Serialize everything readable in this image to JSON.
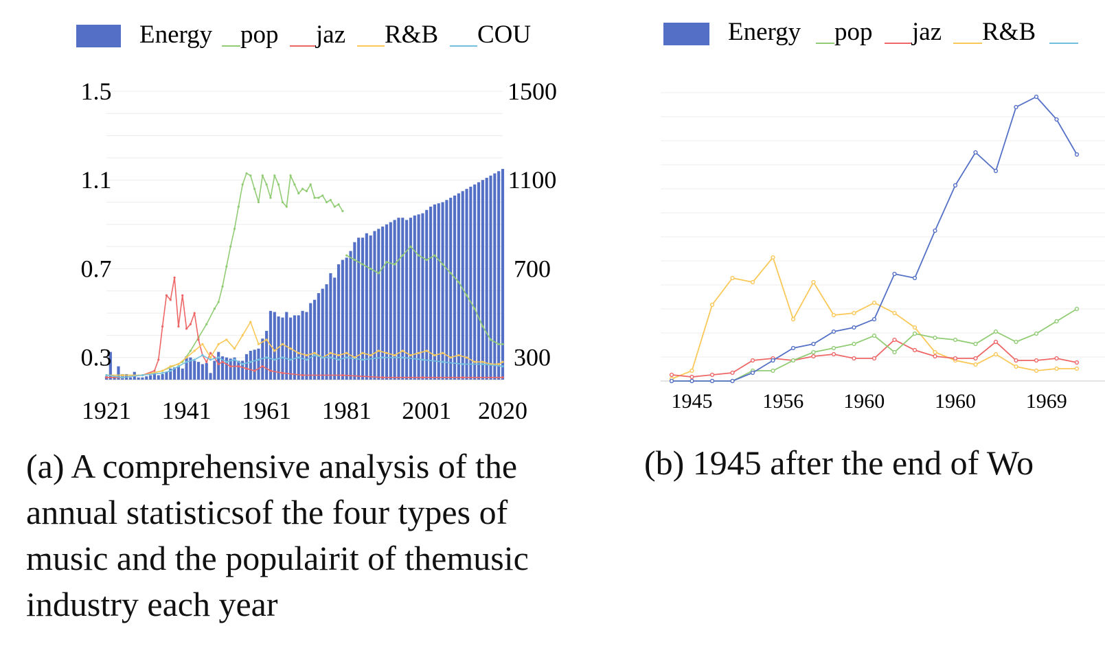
{
  "panel_a": {
    "caption_lines": [
      "(a) A comprehensive analysis of the",
      "annual statisticsof the four types of",
      "music and the populairit of themusic",
      "industry each year"
    ],
    "legend": [
      "Energy",
      "pop",
      "jaz",
      "R&B",
      "COU"
    ]
  },
  "panel_b": {
    "caption": "(b) 1945 after the end of Wo",
    "legend": [
      "Energy",
      "pop",
      "jaz",
      "R&B"
    ]
  },
  "colors": {
    "energy": "#5470c6",
    "pop": "#91cc75",
    "jaz": "#ee6666",
    "rb": "#fac858",
    "cou": "#73c0de"
  },
  "chart_data": [
    {
      "type": "bar",
      "x_ticks": [
        "1921",
        "1941",
        "1961",
        "1981",
        "2001",
        "2020"
      ],
      "y_left_ticks": [
        "1.5",
        "1.1",
        "0.7",
        "0.3"
      ],
      "y_right_ticks": [
        "1500",
        "1100",
        "700",
        "300"
      ],
      "ylim_left": [
        0.2,
        1.5
      ],
      "ylim_right": [
        200,
        1500
      ],
      "grid": true,
      "legend_position": "top",
      "series": [
        {
          "name": "Energy",
          "kind": "bar",
          "axis": "right",
          "x": [
            1921,
            1922,
            1923,
            1924,
            1925,
            1926,
            1927,
            1928,
            1929,
            1930,
            1931,
            1932,
            1933,
            1934,
            1935,
            1936,
            1937,
            1938,
            1939,
            1940,
            1941,
            1942,
            1943,
            1944,
            1945,
            1946,
            1947,
            1948,
            1949,
            1950,
            1951,
            1952,
            1953,
            1954,
            1955,
            1956,
            1957,
            1958,
            1959,
            1960,
            1961,
            1962,
            1963,
            1964,
            1965,
            1966,
            1967,
            1968,
            1969,
            1970,
            1971,
            1972,
            1973,
            1974,
            1975,
            1976,
            1977,
            1978,
            1979,
            1980,
            1981,
            1982,
            1983,
            1984,
            1985,
            1986,
            1987,
            1988,
            1989,
            1990,
            1991,
            1992,
            1993,
            1994,
            1995,
            1996,
            1997,
            1998,
            1999,
            2000,
            2001,
            2002,
            2003,
            2004,
            2005,
            2006,
            2007,
            2008,
            2009,
            2010,
            2011,
            2012,
            2013,
            2014,
            2015,
            2016,
            2017,
            2018,
            2019,
            2020
          ],
          "values": [
            215,
            325,
            215,
            260,
            225,
            225,
            210,
            235,
            210,
            210,
            215,
            220,
            230,
            220,
            225,
            235,
            250,
            255,
            260,
            250,
            305,
            300,
            285,
            280,
            270,
            275,
            230,
            285,
            325,
            305,
            300,
            295,
            300,
            285,
            285,
            315,
            330,
            335,
            340,
            385,
            420,
            510,
            505,
            485,
            480,
            505,
            480,
            490,
            490,
            510,
            505,
            545,
            560,
            590,
            610,
            630,
            680,
            660,
            720,
            740,
            750,
            780,
            820,
            840,
            840,
            860,
            850,
            870,
            880,
            890,
            900,
            910,
            920,
            930,
            930,
            920,
            930,
            940,
            945,
            950,
            965,
            980,
            990,
            995,
            1000,
            1010,
            1020,
            1030,
            1040,
            1050,
            1060,
            1070,
            1080,
            1090,
            1100,
            1110,
            1120,
            1130,
            1140,
            1150
          ]
        },
        {
          "name": "pop",
          "kind": "line",
          "axis": "left",
          "x": [
            1921,
            1925,
            1930,
            1935,
            1940,
            1942,
            1944,
            1946,
            1948,
            1949,
            1950,
            1951,
            1952,
            1953,
            1954,
            1955,
            1956,
            1957,
            1958,
            1959,
            1960,
            1961,
            1962,
            1963,
            1964,
            1965,
            1966,
            1967,
            1968,
            1969,
            1970,
            1971,
            1972,
            1973,
            1974,
            1975,
            1976,
            1977,
            1978,
            1979,
            1980
          ],
          "values": [
            0.22,
            0.22,
            0.22,
            0.24,
            0.28,
            0.33,
            0.39,
            0.45,
            0.52,
            0.55,
            0.62,
            0.71,
            0.8,
            0.88,
            0.98,
            1.08,
            1.13,
            1.12,
            1.06,
            1.0,
            1.12,
            1.08,
            1.02,
            1.12,
            1.08,
            1.0,
            0.98,
            1.12,
            1.08,
            1.04,
            1.06,
            1.05,
            1.08,
            1.02,
            1.02,
            1.03,
            1.0,
            1.01,
            0.98,
            0.99,
            0.96
          ]
        },
        {
          "name": "pop",
          "kind": "line",
          "axis": "left",
          "x": [
            1981,
            1983,
            1985,
            1987,
            1989,
            1991,
            1993,
            1995,
            1997,
            1999,
            2001,
            2003,
            2005,
            2007,
            2009,
            2011,
            2013,
            2015,
            2017,
            2019,
            2020
          ],
          "values": [
            0.76,
            0.74,
            0.72,
            0.7,
            0.68,
            0.73,
            0.72,
            0.76,
            0.8,
            0.76,
            0.74,
            0.76,
            0.72,
            0.68,
            0.64,
            0.58,
            0.52,
            0.44,
            0.38,
            0.36,
            0.36
          ]
        },
        {
          "name": "jaz",
          "kind": "line",
          "axis": "left",
          "x": [
            1921,
            1925,
            1930,
            1933,
            1934,
            1935,
            1936,
            1937,
            1938,
            1939,
            1940,
            1941,
            1942,
            1943,
            1944,
            1945,
            1946,
            1947,
            1948,
            1949,
            1950,
            1952,
            1954,
            1956,
            1958,
            1960,
            1962,
            1965,
            1970,
            1980,
            1990,
            2000,
            2010,
            2020
          ],
          "values": [
            0.21,
            0.21,
            0.22,
            0.24,
            0.29,
            0.44,
            0.58,
            0.56,
            0.66,
            0.44,
            0.58,
            0.43,
            0.45,
            0.5,
            0.38,
            0.31,
            0.28,
            0.32,
            0.3,
            0.27,
            0.28,
            0.26,
            0.26,
            0.25,
            0.24,
            0.26,
            0.24,
            0.23,
            0.22,
            0.22,
            0.21,
            0.21,
            0.21,
            0.21
          ]
        },
        {
          "name": "R&B",
          "kind": "line",
          "axis": "left",
          "x": [
            1921,
            1925,
            1930,
            1935,
            1937,
            1939,
            1941,
            1943,
            1945,
            1947,
            1949,
            1951,
            1953,
            1955,
            1957,
            1959,
            1961,
            1963,
            1965,
            1967,
            1969,
            1971,
            1973,
            1975,
            1977,
            1979,
            1981,
            1983,
            1985,
            1987,
            1989,
            1991,
            1993,
            1995,
            1997,
            1999,
            2001,
            2003,
            2005,
            2007,
            2009,
            2011,
            2013,
            2015,
            2017,
            2019,
            2020
          ],
          "values": [
            0.22,
            0.22,
            0.22,
            0.24,
            0.26,
            0.27,
            0.3,
            0.33,
            0.36,
            0.3,
            0.36,
            0.38,
            0.34,
            0.4,
            0.46,
            0.36,
            0.38,
            0.33,
            0.36,
            0.34,
            0.32,
            0.31,
            0.32,
            0.3,
            0.32,
            0.31,
            0.32,
            0.3,
            0.32,
            0.31,
            0.33,
            0.32,
            0.31,
            0.33,
            0.31,
            0.32,
            0.33,
            0.31,
            0.32,
            0.3,
            0.31,
            0.3,
            0.28,
            0.28,
            0.27,
            0.27,
            0.28
          ]
        },
        {
          "name": "COU",
          "kind": "line",
          "axis": "left",
          "x": [
            1921,
            1925,
            1930,
            1935,
            1937,
            1939,
            1941,
            1943,
            1945,
            1947,
            1949,
            1951,
            1953,
            1955,
            1957,
            1959,
            1961,
            1963,
            1965,
            1967,
            1969,
            1971,
            1973,
            1975,
            1977,
            1979,
            1981,
            1985,
            1990,
            1995,
            2000,
            2005,
            2010,
            2015,
            2020
          ],
          "values": [
            0.22,
            0.21,
            0.22,
            0.23,
            0.24,
            0.26,
            0.28,
            0.29,
            0.31,
            0.29,
            0.3,
            0.28,
            0.29,
            0.27,
            0.28,
            0.29,
            0.3,
            0.29,
            0.3,
            0.29,
            0.3,
            0.29,
            0.31,
            0.3,
            0.3,
            0.29,
            0.3,
            0.29,
            0.3,
            0.3,
            0.29,
            0.28,
            0.27,
            0.27,
            0.26
          ]
        }
      ]
    },
    {
      "type": "line",
      "x_ticks": [
        "1945",
        "1956",
        "1960",
        "1960",
        "1969"
      ],
      "ylim": [
        0,
        1.4
      ],
      "grid": true,
      "legend_position": "top",
      "series": [
        {
          "name": "Energy",
          "values": [
            0.0,
            0.0,
            0.0,
            0.0,
            0.04,
            0.1,
            0.16,
            0.18,
            0.24,
            0.26,
            0.3,
            0.52,
            0.5,
            0.73,
            0.95,
            1.11,
            1.02,
            1.33,
            1.38,
            1.27,
            1.1
          ]
        },
        {
          "name": "pop",
          "values": [
            0.0,
            0.0,
            0.0,
            0.0,
            0.05,
            0.05,
            0.1,
            0.14,
            0.16,
            0.18,
            0.22,
            0.14,
            0.23,
            0.21,
            0.2,
            0.18,
            0.24,
            0.19,
            0.23,
            0.29,
            0.35
          ]
        },
        {
          "name": "jaz",
          "values": [
            0.03,
            0.02,
            0.03,
            0.04,
            0.1,
            0.11,
            0.1,
            0.12,
            0.13,
            0.11,
            0.11,
            0.2,
            0.15,
            0.12,
            0.11,
            0.11,
            0.19,
            0.1,
            0.1,
            0.11,
            0.09
          ]
        },
        {
          "name": "R&B",
          "values": [
            0.01,
            0.05,
            0.37,
            0.5,
            0.48,
            0.6,
            0.3,
            0.48,
            0.32,
            0.33,
            0.38,
            0.33,
            0.26,
            0.14,
            0.1,
            0.08,
            0.13,
            0.07,
            0.05,
            0.06,
            0.06
          ]
        }
      ]
    }
  ]
}
